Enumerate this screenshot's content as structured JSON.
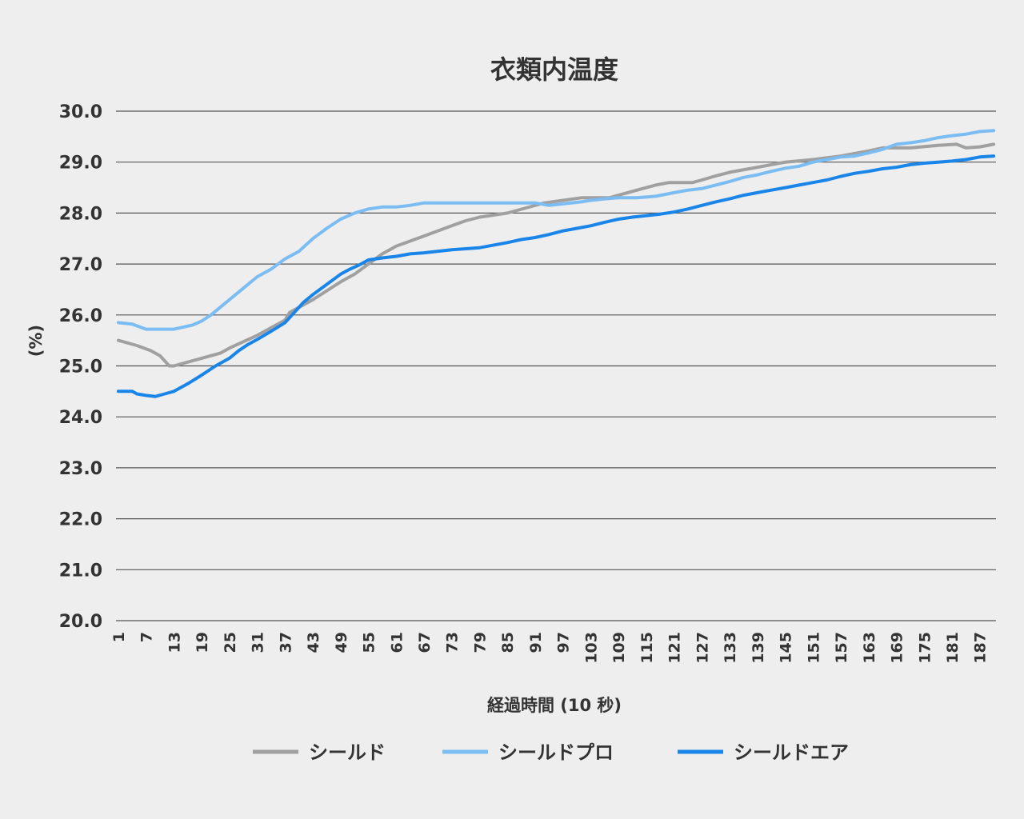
{
  "chart_data": {
    "type": "line",
    "title": "衣類内温度",
    "xlabel": "経過時間 (10 秒)",
    "ylabel": "(%)",
    "ylim": [
      20,
      30
    ],
    "y_ticks": [
      "20.0",
      "21.0",
      "22.0",
      "23.0",
      "24.0",
      "25.0",
      "26.0",
      "27.0",
      "28.0",
      "29.0",
      "30.0"
    ],
    "x_range": [
      1,
      190
    ],
    "x_ticks": [
      "1",
      "7",
      "13",
      "19",
      "25",
      "31",
      "37",
      "43",
      "49",
      "55",
      "61",
      "67",
      "73",
      "79",
      "85",
      "91",
      "97",
      "103",
      "109",
      "115",
      "121",
      "127",
      "133",
      "139",
      "145",
      "151",
      "157",
      "163",
      "169",
      "175",
      "181",
      "187"
    ],
    "grid": "horizontal",
    "legend_position": "bottom",
    "series": [
      {
        "name": "シールド",
        "color": "#a0a0a0",
        "points": [
          [
            1,
            25.5
          ],
          [
            5,
            25.4
          ],
          [
            8,
            25.3
          ],
          [
            9,
            25.25
          ],
          [
            10,
            25.2
          ],
          [
            11,
            25.1
          ],
          [
            12,
            25.0
          ],
          [
            13,
            25.0
          ],
          [
            15,
            25.05
          ],
          [
            19,
            25.15
          ],
          [
            23,
            25.25
          ],
          [
            25,
            25.35
          ],
          [
            31,
            25.6
          ],
          [
            37,
            25.9
          ],
          [
            38,
            26.05
          ],
          [
            40,
            26.15
          ],
          [
            43,
            26.3
          ],
          [
            49,
            26.65
          ],
          [
            52,
            26.8
          ],
          [
            55,
            27.0
          ],
          [
            58,
            27.2
          ],
          [
            61,
            27.35
          ],
          [
            67,
            27.55
          ],
          [
            73,
            27.75
          ],
          [
            76,
            27.85
          ],
          [
            79,
            27.92
          ],
          [
            85,
            28.0
          ],
          [
            89,
            28.1
          ],
          [
            91,
            28.15
          ],
          [
            93,
            28.2
          ],
          [
            97,
            28.25
          ],
          [
            101,
            28.3
          ],
          [
            103,
            28.3
          ],
          [
            107,
            28.3
          ],
          [
            109,
            28.35
          ],
          [
            113,
            28.45
          ],
          [
            117,
            28.55
          ],
          [
            120,
            28.6
          ],
          [
            125,
            28.6
          ],
          [
            127,
            28.65
          ],
          [
            130,
            28.73
          ],
          [
            133,
            28.8
          ],
          [
            139,
            28.9
          ],
          [
            145,
            29.0
          ],
          [
            151,
            29.05
          ],
          [
            157,
            29.12
          ],
          [
            163,
            29.22
          ],
          [
            166,
            29.28
          ],
          [
            172,
            29.28
          ],
          [
            178,
            29.33
          ],
          [
            182,
            29.35
          ],
          [
            184,
            29.28
          ],
          [
            187,
            29.3
          ],
          [
            190,
            29.35
          ]
        ]
      },
      {
        "name": "シールドプロ",
        "color": "#7bbdf2",
        "points": [
          [
            1,
            25.85
          ],
          [
            4,
            25.82
          ],
          [
            7,
            25.72
          ],
          [
            9,
            25.72
          ],
          [
            13,
            25.72
          ],
          [
            17,
            25.8
          ],
          [
            19,
            25.88
          ],
          [
            21,
            26.0
          ],
          [
            25,
            26.3
          ],
          [
            29,
            26.6
          ],
          [
            31,
            26.75
          ],
          [
            34,
            26.9
          ],
          [
            37,
            27.1
          ],
          [
            40,
            27.25
          ],
          [
            43,
            27.5
          ],
          [
            46,
            27.7
          ],
          [
            49,
            27.88
          ],
          [
            52,
            28.0
          ],
          [
            55,
            28.08
          ],
          [
            58,
            28.12
          ],
          [
            61,
            28.12
          ],
          [
            64,
            28.15
          ],
          [
            67,
            28.2
          ],
          [
            73,
            28.2
          ],
          [
            79,
            28.2
          ],
          [
            85,
            28.2
          ],
          [
            91,
            28.2
          ],
          [
            94,
            28.15
          ],
          [
            97,
            28.18
          ],
          [
            101,
            28.22
          ],
          [
            103,
            28.25
          ],
          [
            106,
            28.28
          ],
          [
            109,
            28.3
          ],
          [
            113,
            28.3
          ],
          [
            117,
            28.33
          ],
          [
            121,
            28.4
          ],
          [
            124,
            28.45
          ],
          [
            127,
            28.48
          ],
          [
            130,
            28.55
          ],
          [
            133,
            28.62
          ],
          [
            136,
            28.7
          ],
          [
            139,
            28.75
          ],
          [
            142,
            28.82
          ],
          [
            145,
            28.88
          ],
          [
            148,
            28.92
          ],
          [
            151,
            29.0
          ],
          [
            154,
            29.05
          ],
          [
            157,
            29.1
          ],
          [
            160,
            29.12
          ],
          [
            163,
            29.18
          ],
          [
            166,
            29.25
          ],
          [
            169,
            29.35
          ],
          [
            172,
            29.38
          ],
          [
            175,
            29.42
          ],
          [
            178,
            29.48
          ],
          [
            181,
            29.52
          ],
          [
            184,
            29.55
          ],
          [
            187,
            29.6
          ],
          [
            190,
            29.62
          ]
        ]
      },
      {
        "name": "シールドエア",
        "color": "#1a85e8",
        "points": [
          [
            1,
            24.5
          ],
          [
            4,
            24.5
          ],
          [
            5,
            24.45
          ],
          [
            7,
            24.42
          ],
          [
            9,
            24.4
          ],
          [
            11,
            24.45
          ],
          [
            13,
            24.5
          ],
          [
            16,
            24.65
          ],
          [
            19,
            24.82
          ],
          [
            22,
            25.0
          ],
          [
            25,
            25.15
          ],
          [
            27,
            25.3
          ],
          [
            29,
            25.42
          ],
          [
            31,
            25.52
          ],
          [
            34,
            25.68
          ],
          [
            37,
            25.85
          ],
          [
            39,
            26.05
          ],
          [
            41,
            26.25
          ],
          [
            43,
            26.4
          ],
          [
            46,
            26.6
          ],
          [
            49,
            26.8
          ],
          [
            51,
            26.9
          ],
          [
            53,
            26.98
          ],
          [
            55,
            27.08
          ],
          [
            58,
            27.12
          ],
          [
            61,
            27.15
          ],
          [
            64,
            27.2
          ],
          [
            67,
            27.22
          ],
          [
            73,
            27.28
          ],
          [
            79,
            27.32
          ],
          [
            85,
            27.42
          ],
          [
            88,
            27.48
          ],
          [
            91,
            27.52
          ],
          [
            94,
            27.58
          ],
          [
            97,
            27.65
          ],
          [
            100,
            27.7
          ],
          [
            103,
            27.75
          ],
          [
            106,
            27.82
          ],
          [
            109,
            27.88
          ],
          [
            112,
            27.92
          ],
          [
            115,
            27.95
          ],
          [
            118,
            27.98
          ],
          [
            121,
            28.02
          ],
          [
            124,
            28.08
          ],
          [
            127,
            28.15
          ],
          [
            130,
            28.22
          ],
          [
            133,
            28.28
          ],
          [
            136,
            28.35
          ],
          [
            139,
            28.4
          ],
          [
            142,
            28.45
          ],
          [
            145,
            28.5
          ],
          [
            148,
            28.55
          ],
          [
            151,
            28.6
          ],
          [
            154,
            28.65
          ],
          [
            157,
            28.72
          ],
          [
            160,
            28.78
          ],
          [
            163,
            28.82
          ],
          [
            166,
            28.87
          ],
          [
            169,
            28.9
          ],
          [
            172,
            28.95
          ],
          [
            175,
            28.98
          ],
          [
            178,
            29.0
          ],
          [
            181,
            29.02
          ],
          [
            184,
            29.05
          ],
          [
            187,
            29.1
          ],
          [
            190,
            29.12
          ]
        ]
      }
    ]
  }
}
